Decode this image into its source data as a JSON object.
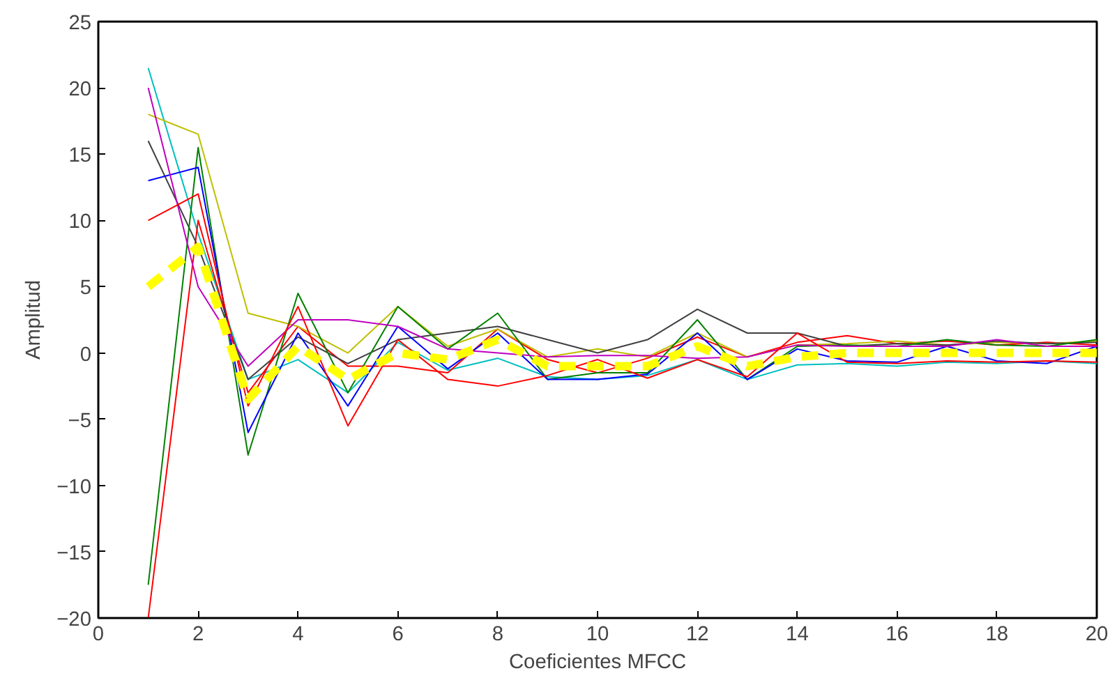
{
  "chart_data": {
    "type": "line",
    "xlabel": "Coeficientes MFCC",
    "ylabel": "Amplitud",
    "x": [
      1,
      2,
      3,
      4,
      5,
      6,
      7,
      8,
      9,
      10,
      11,
      12,
      13,
      14,
      15,
      16,
      17,
      18,
      19,
      20
    ],
    "xlim": [
      0,
      20
    ],
    "xticks": [
      0,
      2,
      4,
      6,
      8,
      10,
      12,
      14,
      16,
      18,
      20
    ],
    "ylim": [
      -20,
      25
    ],
    "yticks": [
      -20,
      -15,
      -10,
      -5,
      0,
      5,
      10,
      15,
      20,
      25
    ],
    "grid": false,
    "marker": "none",
    "line_style": "solid",
    "series": [
      {
        "color": "#00bfbf",
        "values": [
          21.5,
          9,
          -2,
          -0.5,
          -3,
          0.8,
          -1.3,
          -0.4,
          -1.8,
          -2,
          -1.7,
          -0.5,
          -2,
          -0.9,
          -0.8,
          -1,
          -0.7,
          -0.8,
          -0.6,
          -0.8
        ]
      },
      {
        "color": "#ff0000",
        "values": [
          -20,
          10,
          -3,
          2,
          -1,
          -1,
          -1.5,
          1.8,
          -0.5,
          -1.5,
          -0.4,
          1.2,
          -0.3,
          0.8,
          1.3,
          0.7,
          0.9,
          0.6,
          0.8,
          0.6
        ]
      },
      {
        "color": "#bfbf00",
        "values": [
          18,
          16.5,
          3,
          2,
          0,
          3.5,
          0.5,
          1.8,
          -0.3,
          0.3,
          -0.3,
          1.5,
          -0.3,
          0.6,
          0.7,
          0.9,
          0.6,
          0.8,
          0.7,
          0.9
        ]
      },
      {
        "color": "#404040",
        "values": [
          16,
          8,
          -2,
          1.2,
          -0.8,
          1,
          1.5,
          2,
          1,
          0,
          1,
          3.3,
          1.5,
          1.5,
          0.5,
          0.7,
          0.6,
          0.9,
          0.7,
          0.8
        ]
      },
      {
        "color": "#008000",
        "values": [
          -17.5,
          15.5,
          -7.7,
          4.5,
          -3,
          3.5,
          0.3,
          3,
          -2,
          -1.5,
          -1.5,
          2.5,
          -2,
          0.5,
          0.6,
          0.5,
          1,
          0.6,
          0.5,
          1
        ]
      },
      {
        "color": "#0000ff",
        "values": [
          13,
          14,
          -6,
          1.5,
          -4,
          2,
          -1.2,
          1.5,
          -2,
          -2,
          -1.6,
          1.5,
          -2,
          0.3,
          -0.6,
          -0.7,
          0.5,
          -0.6,
          -0.8,
          0.5
        ]
      },
      {
        "color": "#bf00bf",
        "values": [
          20,
          5,
          -1,
          2.5,
          2.5,
          2,
          0.3,
          0,
          -0.3,
          -0.2,
          -0.2,
          -0.4,
          -0.3,
          0.6,
          0.5,
          0.5,
          0.5,
          1,
          0.5,
          0.5
        ]
      },
      {
        "color": "#ff0000",
        "values": [
          10,
          12,
          -4,
          3.5,
          -5.5,
          1,
          -2,
          -2.5,
          -1.7,
          -0.5,
          -1.9,
          -0.5,
          -1.8,
          1.5,
          -0.7,
          -0.8,
          -0.6,
          -0.7,
          -0.6,
          -0.7
        ]
      },
      {
        "color": "#ffff00",
        "line_style": "dashed",
        "values": [
          5,
          8,
          -3.5,
          0.5,
          -2,
          0,
          -0.5,
          1,
          -1,
          -1,
          -1,
          0.5,
          -1,
          -0.3,
          0,
          0,
          0,
          0,
          0,
          0
        ]
      }
    ]
  }
}
